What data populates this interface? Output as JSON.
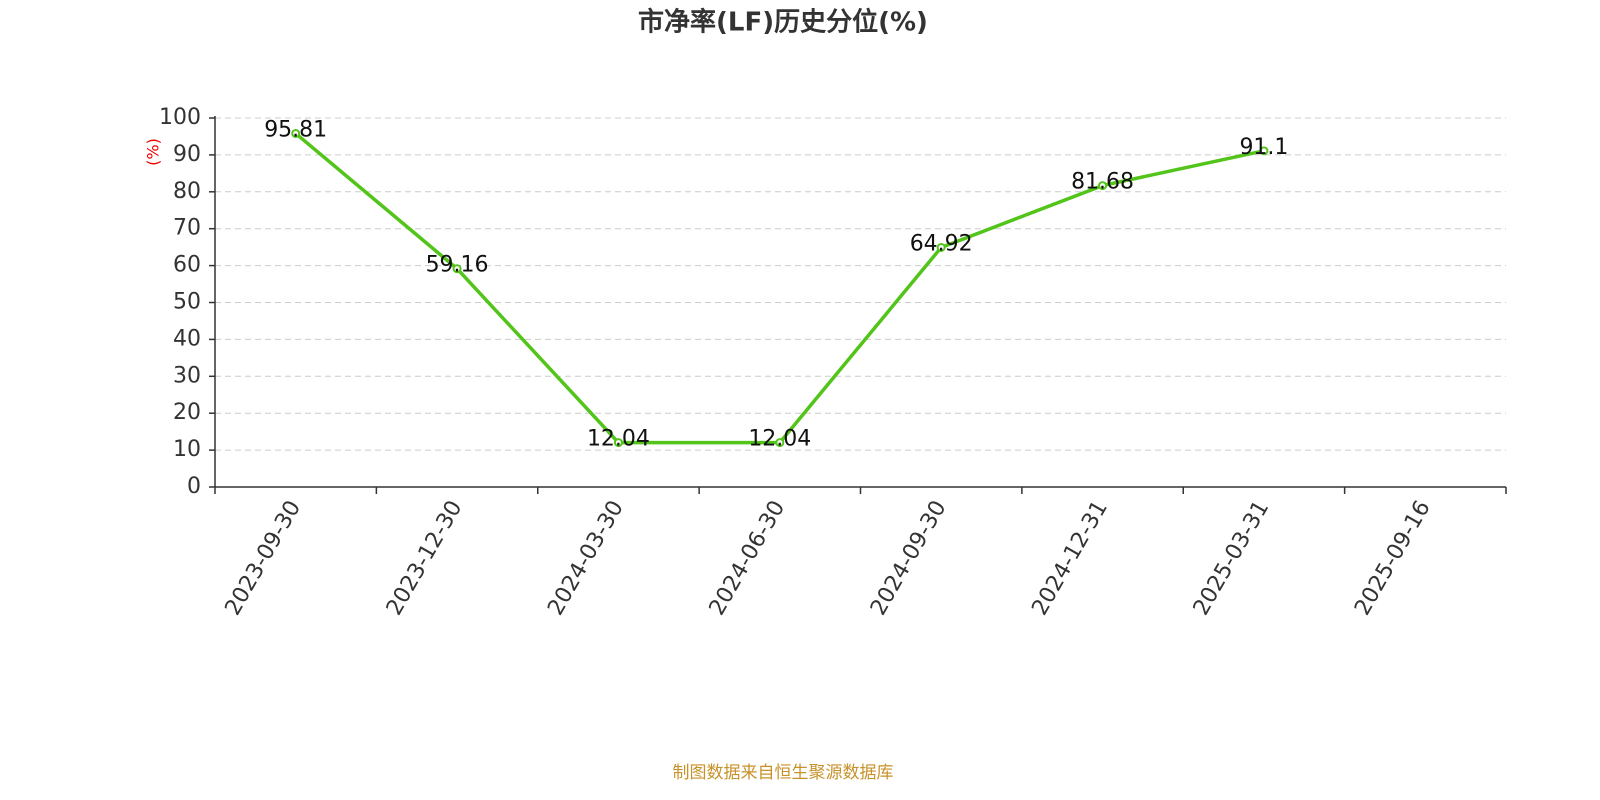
{
  "chart_data": {
    "type": "line",
    "title": "市净率(LF)历史分位(%)",
    "y_label": "(%)",
    "categories": [
      "2023-09-30",
      "2023-12-30",
      "2024-03-30",
      "2024-06-30",
      "2024-09-30",
      "2024-12-31",
      "2025-03-31",
      "2025-09-16"
    ],
    "series": [
      {
        "name": "市净率(LF)历史分位",
        "color": "#52c41a",
        "values": [
          95.81,
          59.16,
          12.04,
          12.04,
          64.92,
          81.68,
          91.1,
          null
        ]
      }
    ],
    "ylim": [
      0,
      100
    ],
    "yticks": [
      0,
      10,
      20,
      30,
      40,
      50,
      60,
      70,
      80,
      90,
      100
    ],
    "grid": true,
    "source": "制图数据来自恒生聚源数据库"
  }
}
